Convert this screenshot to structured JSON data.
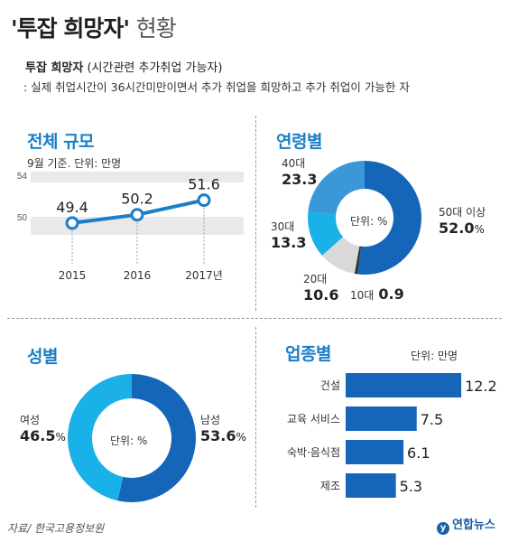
{
  "header": {
    "title_main": "'투잡 희망자'",
    "title_suffix": "현황",
    "def_term": "투잡 희망자",
    "def_paren": "(시간관련 추가취업 가능자)",
    "def_desc": ": 실제 취업시간이 36시간미만이면서 추가 취업을 희망하고 추가 취업이 가능한 자"
  },
  "sections": {
    "total": "전체 규모",
    "total_note": "9월 기준. 단위: 만명",
    "age": "연령별",
    "gender": "성별",
    "industry": "업종별",
    "industry_unit": "단위: 만명",
    "donut_unit": "단위: %"
  },
  "source": "자료/ 한국고용정보원",
  "logo": "연합뉴스",
  "colors": {
    "accent": "#1b7fc7",
    "dark_blue": "#1565b8",
    "mid_blue": "#3a97d8",
    "light_blue": "#1ab0e8",
    "gray": "#d9d9d9",
    "dark": "#333333"
  },
  "chart_data": [
    {
      "type": "line",
      "title": "전체 규모",
      "note": "9월 기준. 단위: 만명",
      "x": [
        "2015",
        "2016",
        "2017년"
      ],
      "y": [
        49.4,
        50.2,
        51.6
      ],
      "y_ticks": [
        "54",
        "50"
      ],
      "ylim": [
        48,
        54
      ]
    },
    {
      "type": "pie",
      "title": "연령별",
      "unit": "단위: %",
      "slices": [
        {
          "label": "50대 이상",
          "value": 52.0,
          "value_text": "52.0",
          "color": "#1565b8"
        },
        {
          "label": "10대",
          "value": 0.9,
          "value_text": "0.9",
          "color": "#333333"
        },
        {
          "label": "20대",
          "value": 10.6,
          "value_text": "10.6",
          "color": "#d9d9d9"
        },
        {
          "label": "30대",
          "value": 13.3,
          "value_text": "13.3",
          "color": "#1ab0e8"
        },
        {
          "label": "40대",
          "value": 23.3,
          "value_text": "23.3",
          "color": "#3a97d8"
        }
      ]
    },
    {
      "type": "pie",
      "title": "성별",
      "unit": "단위: %",
      "slices": [
        {
          "label": "남성",
          "value": 53.6,
          "value_text": "53.6",
          "color": "#1565b8"
        },
        {
          "label": "여성",
          "value": 46.5,
          "value_text": "46.5",
          "color": "#1ab0e8"
        }
      ]
    },
    {
      "type": "bar",
      "title": "업종별",
      "unit": "단위: 만명",
      "categories": [
        "건설",
        "교육 서비스",
        "숙박·음식점",
        "제조"
      ],
      "values": [
        12.2,
        7.5,
        6.1,
        5.3
      ],
      "value_text": [
        "12.2",
        "7.5",
        "6.1",
        "5.3"
      ],
      "color": "#1565b8"
    }
  ]
}
